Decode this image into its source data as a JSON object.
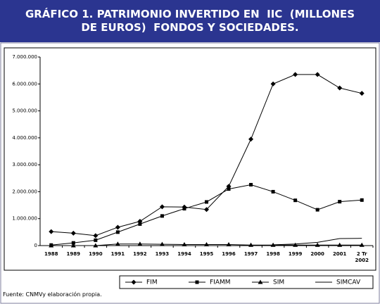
{
  "chart_data": {
    "type": "line",
    "title": "GRÁFICO 1. PATRIMONIO INVERTIDO EN  IIC  (MILLONES DE EUROS)  FONDOS Y SOCIEDADES.",
    "source": "Fuente: CNMVy elaboración propia.",
    "categories": [
      "1988",
      "1989",
      "1990",
      "1991",
      "1992",
      "1993",
      "1994",
      "1995",
      "1996",
      "1997",
      "1998",
      "1999",
      "2000",
      "2001",
      "2 Tr 2002"
    ],
    "series": [
      {
        "name": "FIM",
        "color": "#000000",
        "marker": "diamond",
        "values": [
          520000,
          460000,
          370000,
          680000,
          900000,
          1440000,
          1430000,
          1340000,
          2200000,
          3950000,
          6000000,
          6350000,
          6350000,
          5850000,
          5650000
        ]
      },
      {
        "name": "FIAMM",
        "color": "#000000",
        "marker": "square",
        "values": [
          20000,
          100000,
          200000,
          500000,
          800000,
          1100000,
          1370000,
          1620000,
          2100000,
          2260000,
          2000000,
          1680000,
          1330000,
          1630000,
          1690000
        ]
      },
      {
        "name": "SIM",
        "color": "#000000",
        "marker": "triangle",
        "values": [
          0,
          0,
          0,
          60000,
          60000,
          50000,
          40000,
          40000,
          40000,
          20000,
          20000,
          20000,
          20000,
          20000,
          20000
        ]
      },
      {
        "name": "SIMCAV",
        "color": "#000000",
        "marker": "none",
        "values": [
          null,
          null,
          null,
          null,
          null,
          null,
          null,
          null,
          null,
          null,
          30000,
          60000,
          120000,
          260000,
          270000
        ]
      }
    ],
    "ylim": [
      0,
      7000000
    ],
    "yticks": [
      {
        "value": 0,
        "label": "0"
      },
      {
        "value": 1000000,
        "label": "1.000.000"
      },
      {
        "value": 2000000,
        "label": "2.000.000"
      },
      {
        "value": 3000000,
        "label": "3.000.000"
      },
      {
        "value": 4000000,
        "label": "4.000.000"
      },
      {
        "value": 5000000,
        "label": "5.000.000"
      },
      {
        "value": 6000000,
        "label": "6.000.000"
      },
      {
        "value": 7000000,
        "label": "7.000.000"
      }
    ],
    "legend": "bottom-right"
  }
}
